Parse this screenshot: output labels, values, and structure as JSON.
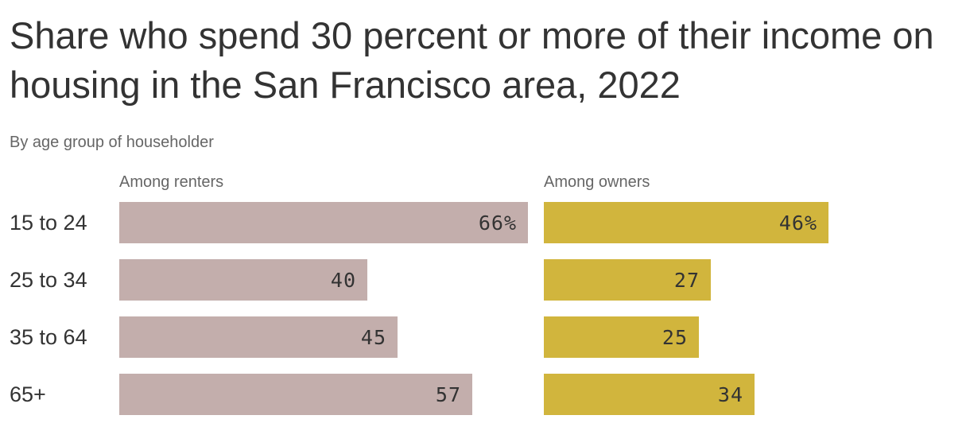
{
  "chart_data": {
    "type": "bar",
    "orientation": "horizontal",
    "title": "Share who spend 30 percent or more of their income on housing in the San Francisco area, 2022",
    "subtitle": "By age group of householder",
    "categories": [
      "15 to 24",
      "25 to 34",
      "35 to 64",
      "65+"
    ],
    "xlim": [
      0,
      66
    ],
    "panels": [
      {
        "name": "Among renters",
        "color": "#c3aeac",
        "values": [
          66,
          40,
          45,
          57
        ],
        "labels": [
          "66%",
          "40",
          "45",
          "57"
        ]
      },
      {
        "name": "Among owners",
        "color": "#d1b53d",
        "values": [
          46,
          27,
          25,
          34
        ],
        "labels": [
          "46%",
          "27",
          "25",
          "34"
        ]
      }
    ]
  }
}
